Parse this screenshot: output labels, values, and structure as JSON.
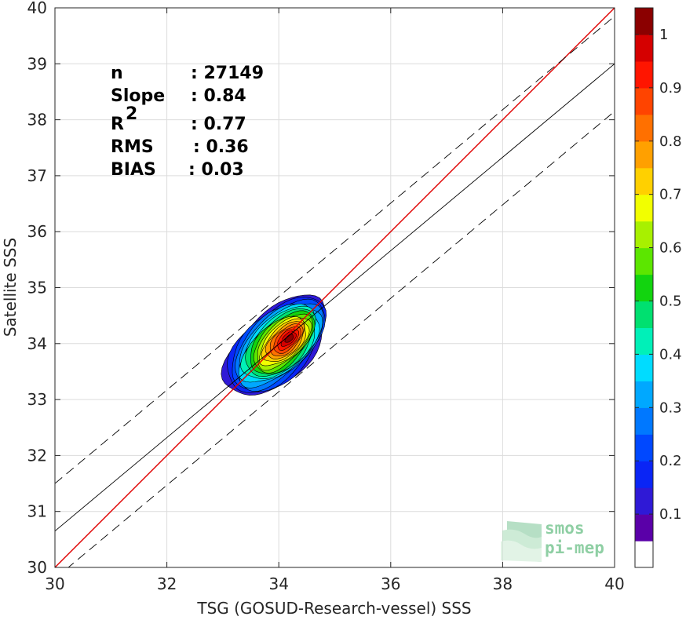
{
  "chart_data": {
    "type": "scatter",
    "xlabel": "TSG (GOSUD-Research-vessel) SSS",
    "ylabel": "Satellite SSS",
    "xlim": [
      30,
      40
    ],
    "ylim": [
      30,
      40
    ],
    "xticks": [
      "30",
      "32",
      "34",
      "36",
      "38",
      "40"
    ],
    "yticks": [
      "30",
      "31",
      "32",
      "33",
      "34",
      "35",
      "36",
      "37",
      "38",
      "39",
      "40"
    ],
    "grid": true,
    "stats": [
      {
        "label": "n",
        "sep": ":",
        "value": "27149"
      },
      {
        "label": "Slope",
        "sep": ":",
        "value": "0.84"
      },
      {
        "label": "R",
        "sup": "2",
        "sep": ":",
        "value": "0.77"
      },
      {
        "label": "RMS",
        "sep": ":",
        "value": "0.36"
      },
      {
        "label": "BIAS",
        "sep": ":",
        "value": "0.03"
      }
    ],
    "lines": [
      {
        "name": "one-to-one",
        "color": "#e00000",
        "style": "solid",
        "points": [
          [
            30,
            30
          ],
          [
            40,
            40
          ]
        ]
      },
      {
        "name": "regression",
        "color": "#000000",
        "style": "solid",
        "points": [
          [
            30,
            30.65
          ],
          [
            40,
            39.0
          ]
        ]
      },
      {
        "name": "regression-upper",
        "color": "#000000",
        "style": "dashed",
        "points": [
          [
            30,
            31.5
          ],
          [
            40,
            39.85
          ]
        ]
      },
      {
        "name": "regression-lower",
        "color": "#000000",
        "style": "dashed",
        "points": [
          [
            30,
            29.8
          ],
          [
            40,
            38.15
          ]
        ]
      }
    ],
    "density": {
      "center": [
        33.95,
        33.95
      ],
      "levels": [
        0.05,
        0.1,
        0.15,
        0.2,
        0.25,
        0.3,
        0.35,
        0.4,
        0.45,
        0.5,
        0.55,
        0.6,
        0.65,
        0.7,
        0.75,
        0.8,
        0.85,
        0.9,
        0.95
      ],
      "outer_extent": {
        "x": [
          33.05,
          34.85
        ],
        "y": [
          33.0,
          34.95
        ]
      }
    },
    "colorbar": {
      "ticks": [
        "0.1",
        "0.2",
        "0.3",
        "0.4",
        "0.5",
        "0.6",
        "0.7",
        "0.8",
        "0.9",
        "1"
      ],
      "tick_values": [
        0.1,
        0.2,
        0.3,
        0.4,
        0.5,
        0.6,
        0.7,
        0.8,
        0.9,
        1.0
      ],
      "colors": [
        "#ffffff",
        "#5a00a8",
        "#2f19d6",
        "#0a25f5",
        "#0048ff",
        "#0078ff",
        "#00a8ff",
        "#00dcff",
        "#00f0b8",
        "#00e070",
        "#12d40f",
        "#5ce600",
        "#a8f000",
        "#f2ff00",
        "#ffd000",
        "#ffa000",
        "#ff7000",
        "#ff4400",
        "#ff1500",
        "#d50000",
        "#8b0000"
      ]
    }
  },
  "logo": {
    "line1": "smos",
    "line2": "pi-mep"
  }
}
